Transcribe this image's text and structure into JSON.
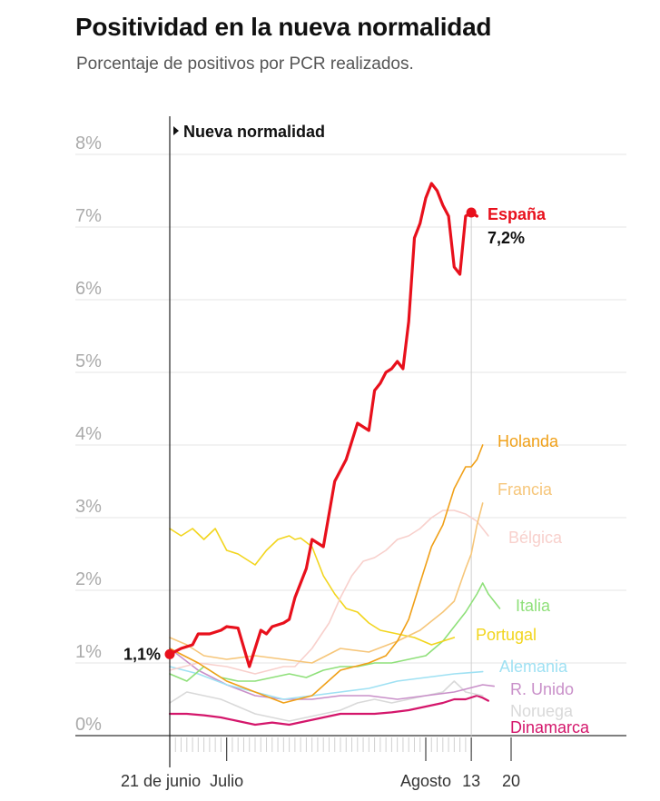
{
  "title": "Positividad en la nueva normalidad",
  "subtitle": "Porcentaje de positivos por PCR realizados.",
  "chart_data": {
    "type": "line",
    "ylim": [
      0,
      8
    ],
    "yticks": [
      "0%",
      "1%",
      "2%",
      "3%",
      "4%",
      "5%",
      "6%",
      "7%",
      "8%"
    ],
    "x_start_day": 0,
    "x_end_day": 60,
    "xlabel_ticks": [
      {
        "label": "21 de junio",
        "day": -3
      },
      {
        "label": "Julio",
        "day": 10
      },
      {
        "label": "Agosto",
        "day": 45
      },
      {
        "label": "13",
        "day": 53
      },
      {
        "label": "20",
        "day": 60
      }
    ],
    "annotation": {
      "label": "Nueva normalidad",
      "day": 0
    },
    "start_label": "1,1%",
    "end_label": "7,2%",
    "series": [
      {
        "name": "España",
        "color": "#e8101c",
        "width": 3.2,
        "bold": true,
        "end_value_label": "7,2%",
        "x": [
          0,
          2,
          4,
          5,
          7,
          9,
          10,
          12,
          14,
          16,
          17,
          18,
          20,
          21,
          22,
          24,
          25,
          27,
          29,
          31,
          33,
          35,
          36,
          37,
          38,
          39,
          40,
          41,
          42,
          43,
          44,
          45,
          46,
          47,
          48,
          49,
          50,
          51,
          52,
          53,
          54
        ],
        "y": [
          1.12,
          1.2,
          1.25,
          1.4,
          1.4,
          1.45,
          1.5,
          1.48,
          0.95,
          1.45,
          1.4,
          1.5,
          1.55,
          1.6,
          1.9,
          2.3,
          2.7,
          2.6,
          3.5,
          3.8,
          4.3,
          4.2,
          4.75,
          4.85,
          5.0,
          5.05,
          5.15,
          5.05,
          5.7,
          6.85,
          7.05,
          7.4,
          7.6,
          7.5,
          7.3,
          7.15,
          6.45,
          6.35,
          7.15,
          7.2,
          7.15
        ]
      },
      {
        "name": "Holanda",
        "color": "#f0a018",
        "width": 1.6,
        "x": [
          0,
          5,
          10,
          15,
          20,
          25,
          30,
          35,
          38,
          40,
          42,
          44,
          46,
          48,
          50,
          52,
          53,
          54,
          55
        ],
        "y": [
          1.2,
          1.0,
          0.75,
          0.6,
          0.45,
          0.55,
          0.9,
          1.0,
          1.1,
          1.3,
          1.6,
          2.1,
          2.6,
          2.9,
          3.4,
          3.7,
          3.7,
          3.8,
          4.0
        ]
      },
      {
        "name": "Francia",
        "color": "#f6c67a",
        "width": 1.6,
        "x": [
          0,
          3,
          6,
          10,
          15,
          20,
          25,
          30,
          35,
          40,
          44,
          48,
          50,
          52,
          53,
          54,
          55
        ],
        "y": [
          1.35,
          1.25,
          1.1,
          1.05,
          1.1,
          1.05,
          1.0,
          1.2,
          1.15,
          1.3,
          1.45,
          1.7,
          1.85,
          2.3,
          2.5,
          2.9,
          3.2
        ]
      },
      {
        "name": "Bélgica",
        "color": "#f8d0cc",
        "width": 1.6,
        "x": [
          0,
          5,
          10,
          15,
          20,
          22,
          25,
          28,
          30,
          32,
          34,
          36,
          38,
          40,
          42,
          44,
          46,
          48,
          50,
          52,
          54,
          56
        ],
        "y": [
          0.9,
          1.0,
          0.95,
          0.85,
          0.95,
          0.95,
          1.2,
          1.55,
          1.9,
          2.2,
          2.4,
          2.45,
          2.55,
          2.7,
          2.75,
          2.85,
          3.0,
          3.1,
          3.1,
          3.05,
          2.95,
          2.75
        ]
      },
      {
        "name": "Portugal",
        "color": "#f2d51e",
        "width": 1.6,
        "x": [
          0,
          2,
          4,
          6,
          8,
          10,
          12,
          15,
          17,
          19,
          21,
          22,
          23,
          25,
          27,
          29,
          31,
          33,
          35,
          37,
          40,
          43,
          46,
          48,
          50
        ],
        "y": [
          2.85,
          2.75,
          2.85,
          2.7,
          2.85,
          2.55,
          2.5,
          2.35,
          2.55,
          2.7,
          2.75,
          2.7,
          2.72,
          2.6,
          2.2,
          1.95,
          1.75,
          1.7,
          1.55,
          1.45,
          1.4,
          1.35,
          1.25,
          1.3,
          1.35
        ]
      },
      {
        "name": "Italia",
        "color": "#8fe07a",
        "width": 1.6,
        "x": [
          0,
          3,
          6,
          9,
          12,
          15,
          18,
          21,
          24,
          27,
          30,
          33,
          36,
          39,
          42,
          45,
          48,
          50,
          52,
          54,
          55,
          56,
          57,
          58
        ],
        "y": [
          0.85,
          0.75,
          0.95,
          0.8,
          0.75,
          0.75,
          0.8,
          0.85,
          0.8,
          0.9,
          0.95,
          0.95,
          1.0,
          1.0,
          1.05,
          1.1,
          1.3,
          1.5,
          1.7,
          1.95,
          2.1,
          1.95,
          1.85,
          1.75
        ]
      },
      {
        "name": "Alemania",
        "color": "#9fe1f3",
        "width": 1.6,
        "x": [
          0,
          5,
          10,
          15,
          20,
          25,
          30,
          35,
          40,
          45,
          50,
          55
        ],
        "y": [
          0.95,
          0.85,
          0.7,
          0.6,
          0.5,
          0.55,
          0.6,
          0.65,
          0.75,
          0.8,
          0.85,
          0.88
        ]
      },
      {
        "name": "R. Unido",
        "color": "#c990c9",
        "width": 1.6,
        "x": [
          0,
          5,
          10,
          15,
          20,
          25,
          30,
          35,
          40,
          45,
          50,
          55,
          57
        ],
        "y": [
          1.2,
          0.9,
          0.7,
          0.55,
          0.5,
          0.5,
          0.55,
          0.55,
          0.5,
          0.55,
          0.6,
          0.7,
          0.68
        ]
      },
      {
        "name": "Noruega",
        "color": "#d9d9d9",
        "width": 1.6,
        "x": [
          0,
          3,
          6,
          9,
          12,
          15,
          18,
          21,
          24,
          27,
          30,
          33,
          36,
          39,
          42,
          45,
          48,
          50,
          52,
          55
        ],
        "y": [
          0.45,
          0.6,
          0.55,
          0.5,
          0.4,
          0.3,
          0.25,
          0.2,
          0.25,
          0.3,
          0.35,
          0.45,
          0.5,
          0.45,
          0.5,
          0.55,
          0.6,
          0.75,
          0.6,
          0.55
        ]
      },
      {
        "name": "Dinamarca",
        "color": "#d4166b",
        "width": 2.2,
        "x": [
          0,
          3,
          6,
          9,
          12,
          15,
          18,
          21,
          24,
          27,
          30,
          33,
          36,
          39,
          42,
          45,
          48,
          50,
          52,
          54,
          55,
          56
        ],
        "y": [
          0.3,
          0.3,
          0.28,
          0.25,
          0.2,
          0.15,
          0.18,
          0.15,
          0.2,
          0.25,
          0.3,
          0.3,
          0.3,
          0.32,
          0.35,
          0.4,
          0.45,
          0.5,
          0.5,
          0.55,
          0.52,
          0.48
        ]
      }
    ]
  }
}
